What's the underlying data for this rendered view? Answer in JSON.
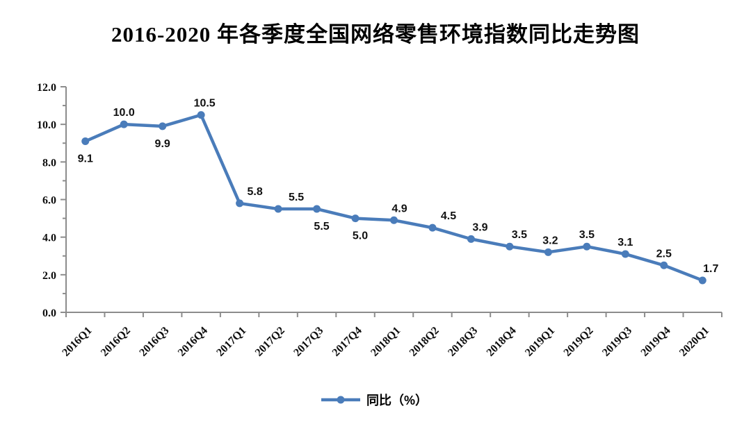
{
  "chart": {
    "title": "2016-2020 年各季度全国网络零售环境指数同比走势图",
    "legend_label": "同比（%）",
    "line_color": "#4a7cba",
    "axis_color": "#8c8c8c",
    "text_color": "#000000"
  },
  "chart_data": {
    "type": "line",
    "title": "2016-2020 年各季度全国网络零售环境指数同比走势图",
    "categories": [
      "2016Q1",
      "2016Q2",
      "2016Q3",
      "2016Q4",
      "2017Q1",
      "2017Q2",
      "2017Q3",
      "2017Q4",
      "2018Q1",
      "2018Q2",
      "2018Q3",
      "2018Q4",
      "2019Q1",
      "2019Q2",
      "2019Q3",
      "2019Q4",
      "2020Q1"
    ],
    "series": [
      {
        "name": "同比（%）",
        "values": [
          9.1,
          10.0,
          9.9,
          10.5,
          5.8,
          5.5,
          5.5,
          5.0,
          4.9,
          4.5,
          3.9,
          3.5,
          3.2,
          3.5,
          3.1,
          2.5,
          1.7
        ]
      }
    ],
    "xlabel": "",
    "ylabel": "",
    "ylim": [
      0,
      12
    ],
    "y_major_tick": 2,
    "y_minor_tick": 1,
    "y_tick_labels": [
      "0.0",
      "2.0",
      "4.0",
      "6.0",
      "8.0",
      "10.0",
      "12.0"
    ],
    "grid": false,
    "data_labels": true,
    "legend_position": "bottom",
    "x_label_rotation": -45,
    "label_pos": [
      "below",
      "above",
      "below",
      "above",
      "above",
      "above",
      "below",
      "below",
      "above",
      "above",
      "above",
      "above",
      "above",
      "above",
      "above",
      "above",
      "above"
    ],
    "label_dx": [
      0,
      0,
      0,
      5,
      22,
      26,
      7,
      7,
      8,
      23,
      13,
      14,
      3,
      0,
      0,
      0,
      12
    ]
  }
}
